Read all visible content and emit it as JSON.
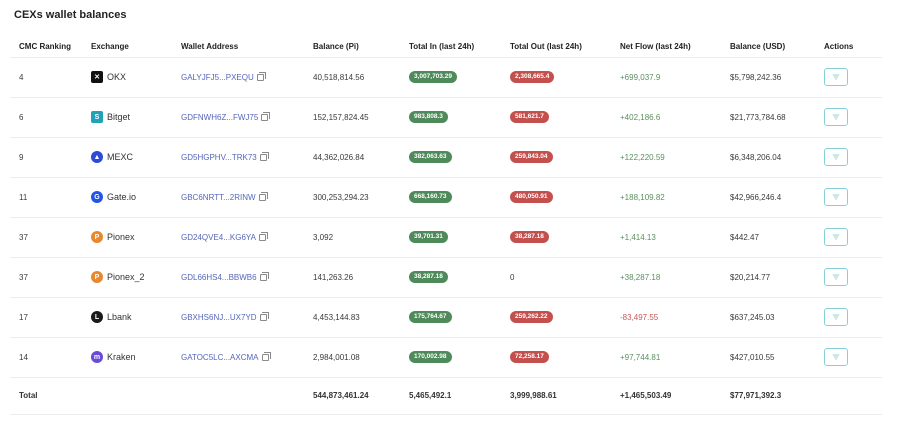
{
  "title": "CEXs wallet balances",
  "headers": {
    "rank": "CMC Ranking",
    "exchange": "Exchange",
    "wallet": "Wallet Address",
    "balance": "Balance (Pi)",
    "total_in": "Total In (last 24h)",
    "total_out": "Total Out (last 24h)",
    "net_flow": "Net Flow (last 24h)",
    "balance_usd": "Balance (USD)",
    "actions": "Actions"
  },
  "rows": [
    {
      "rank": "4",
      "exchange": "OKX",
      "icon": "okx-icon",
      "wallet": "GALYJFJ5...PXEQU",
      "balance": "40,518,814.56",
      "total_in": "3,007,703.29",
      "total_out": "2,308,665.4",
      "net_flow": "+699,037.9",
      "balance_usd": "$5,798,242.36"
    },
    {
      "rank": "6",
      "exchange": "Bitget",
      "icon": "bitget-icon",
      "wallet": "GDFNWH6Z...FWJ75",
      "balance": "152,157,824.45",
      "total_in": "983,808.3",
      "total_out": "581,621.7",
      "net_flow": "+402,186.6",
      "balance_usd": "$21,773,784.68"
    },
    {
      "rank": "9",
      "exchange": "MEXC",
      "icon": "mexc-icon",
      "wallet": "GD5HGPHV...TRK73",
      "balance": "44,362,026.84",
      "total_in": "382,063.63",
      "total_out": "259,843.04",
      "net_flow": "+122,220.59",
      "balance_usd": "$6,348,206.04"
    },
    {
      "rank": "11",
      "exchange": "Gate.io",
      "icon": "gateio-icon",
      "wallet": "GBC6NRTT...2RINW",
      "balance": "300,253,294.23",
      "total_in": "668,160.73",
      "total_out": "480,050.91",
      "net_flow": "+188,109.82",
      "balance_usd": "$42,966,246.4"
    },
    {
      "rank": "37",
      "exchange": "Pionex",
      "icon": "pionex-icon",
      "wallet": "GD24QVE4...KG6YA",
      "balance": "3,092",
      "total_in": "39,701.31",
      "total_out": "38,287.18",
      "net_flow": "+1,414.13",
      "balance_usd": "$442.47"
    },
    {
      "rank": "37",
      "exchange": "Pionex_2",
      "icon": "pionex-icon",
      "wallet": "GDL66HS4...BBWB6",
      "balance": "141,263.26",
      "total_in": "38,287.18",
      "total_out": "0",
      "net_flow": "+38,287.18",
      "balance_usd": "$20,214.77"
    },
    {
      "rank": "17",
      "exchange": "Lbank",
      "icon": "lbank-icon",
      "wallet": "GBXHS6NJ...UX7YD",
      "balance": "4,453,144.83",
      "total_in": "175,764.67",
      "total_out": "259,262.22",
      "net_flow": "-83,497.55",
      "balance_usd": "$637,245.03"
    },
    {
      "rank": "14",
      "exchange": "Kraken",
      "icon": "kraken-icon",
      "wallet": "GATOC5LC...AXCMA",
      "balance": "2,984,001.08",
      "total_in": "170,002.98",
      "total_out": "72,258.17",
      "net_flow": "+97,744.81",
      "balance_usd": "$427,010.55"
    }
  ],
  "total": {
    "label": "Total",
    "balance": "544,873,461.24",
    "total_in": "5,465,492.1",
    "total_out": "3,999,988.61",
    "net_flow": "+1,465,503.49",
    "balance_usd": "$77,971,392.3"
  },
  "colors": {
    "in_pill": "#4f8a5b",
    "out_pill": "#c4504e",
    "positive": "#5a8f5f",
    "negative": "#c95757",
    "address": "#5566bb",
    "action_border": "#86d1d8"
  }
}
